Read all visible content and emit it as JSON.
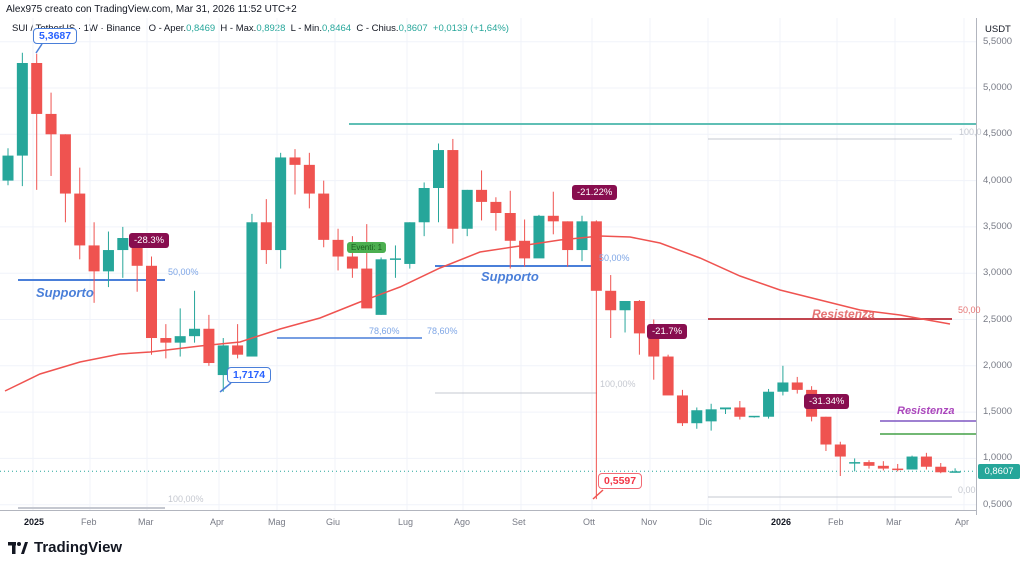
{
  "header": {
    "author_line": "Alex975 creato con TradingView.com, Mar 31, 2026 11:52 UTC+2"
  },
  "symbol_bar": {
    "symbol": "SUI / TetherUS · 1W · Binance",
    "open_label": "O - Aper.",
    "open": "0,8469",
    "high_label": "H - Max.",
    "high": "0,8928",
    "low_label": "L - Min.",
    "low": "0,8464",
    "close_label": "C - Chius.",
    "close": "0,8607",
    "change": "+0,0139 (+1,64%)"
  },
  "price_axis": {
    "unit": "USDT",
    "ticks": [
      "5,5000",
      "5,0000",
      "4,5000",
      "4,0000",
      "3,5000",
      "3,0000",
      "2,5000",
      "2,0000",
      "1,5000",
      "1,0000",
      "0,5000"
    ],
    "last_price": "0,8607",
    "last_price_color": "#26a69a"
  },
  "time_axis": {
    "labels": [
      {
        "text": "2025",
        "bold": true
      },
      {
        "text": "Feb"
      },
      {
        "text": "Mar"
      },
      {
        "text": "Apr"
      },
      {
        "text": "Mag"
      },
      {
        "text": "Giu"
      },
      {
        "text": "Lug"
      },
      {
        "text": "Ago"
      },
      {
        "text": "Set"
      },
      {
        "text": "Ott"
      },
      {
        "text": "Nov"
      },
      {
        "text": "Dic"
      },
      {
        "text": "2026",
        "bold": true
      },
      {
        "text": "Feb"
      },
      {
        "text": "Mar"
      },
      {
        "text": "Apr"
      }
    ]
  },
  "annotations": {
    "high_callout": "5,3687",
    "low_callout_1": "1,7174",
    "low_callout_2": "0,5597",
    "pct_1": "-28.3%",
    "pct_2": "-21.22%",
    "pct_3": "-21.7%",
    "pct_4": "-31.34%",
    "event_badge": "Eventi: 1",
    "support_1": "Supporto",
    "support_2": "Supporto",
    "resistance_1": "Resistenza",
    "resistance_2": "Resistenza",
    "fib_50_a": "50,00%",
    "fib_100_a": "100,00%",
    "fib_786_a": "78,60%",
    "fib_786_b": "78,60%",
    "fib_50_b": "50,00%",
    "fib_100_b": "100,00%",
    "fib_100_c": "100,0",
    "fib_50_c": "50,00",
    "fib_0_c": "0,00"
  },
  "colors": {
    "up": "#26a69a",
    "down": "#ef5350",
    "ma": "#ef5350",
    "support": "#4a7fd9",
    "resistance_red": "#c2454f",
    "resistance_purple": "#7e57c2",
    "teal_line": "#5fbfb5",
    "green_line": "#43a047",
    "badge": "#880e4f"
  },
  "logo": {
    "text": "TradingView"
  },
  "chart_data": {
    "type": "candlestick",
    "title": "SUI / TetherUS · 1W · Binance",
    "xlabel": "",
    "ylabel": "USDT",
    "ylim": [
      0.45,
      5.6
    ],
    "grid": true,
    "x_ticks": [
      "2025",
      "Feb",
      "Mar",
      "Apr",
      "Mag",
      "Giu",
      "Lug",
      "Ago",
      "Set",
      "Ott",
      "Nov",
      "Dic",
      "2026",
      "Feb",
      "Mar",
      "Apr"
    ],
    "candles_ohlc": [
      [
        4.0,
        4.35,
        3.95,
        4.27
      ],
      [
        4.27,
        5.38,
        3.94,
        5.27
      ],
      [
        5.27,
        5.37,
        3.9,
        4.72
      ],
      [
        4.72,
        4.95,
        4.05,
        4.5
      ],
      [
        4.5,
        4.5,
        3.55,
        3.86
      ],
      [
        3.86,
        4.14,
        3.15,
        3.3
      ],
      [
        3.3,
        3.55,
        2.68,
        3.02
      ],
      [
        3.02,
        3.45,
        2.85,
        3.25
      ],
      [
        3.25,
        3.5,
        2.95,
        3.38
      ],
      [
        3.38,
        3.4,
        2.8,
        3.08
      ],
      [
        3.08,
        3.18,
        2.12,
        2.3
      ],
      [
        2.3,
        2.45,
        2.08,
        2.25
      ],
      [
        2.25,
        2.62,
        2.1,
        2.32
      ],
      [
        2.32,
        2.81,
        2.25,
        2.4
      ],
      [
        2.4,
        2.55,
        2.0,
        2.03
      ],
      [
        1.9,
        2.3,
        1.72,
        2.22
      ],
      [
        2.22,
        2.45,
        2.08,
        2.12
      ],
      [
        2.1,
        3.64,
        2.1,
        3.55
      ],
      [
        3.55,
        3.8,
        3.1,
        3.25
      ],
      [
        3.25,
        4.3,
        3.05,
        4.25
      ],
      [
        4.25,
        4.34,
        3.85,
        4.17
      ],
      [
        4.17,
        4.3,
        3.7,
        3.86
      ],
      [
        3.86,
        4.0,
        3.28,
        3.36
      ],
      [
        3.36,
        3.48,
        3.03,
        3.18
      ],
      [
        3.18,
        3.4,
        2.95,
        3.05
      ],
      [
        3.05,
        3.53,
        2.66,
        2.62
      ],
      [
        2.55,
        3.17,
        2.55,
        3.15
      ],
      [
        3.15,
        3.3,
        2.95,
        3.16
      ],
      [
        3.1,
        3.55,
        3.05,
        3.55
      ],
      [
        3.55,
        3.98,
        3.4,
        3.92
      ],
      [
        3.92,
        4.4,
        3.55,
        4.33
      ],
      [
        4.33,
        4.45,
        3.32,
        3.48
      ],
      [
        3.48,
        3.9,
        3.4,
        3.9
      ],
      [
        3.9,
        4.11,
        3.57,
        3.77
      ],
      [
        3.77,
        3.82,
        3.46,
        3.65
      ],
      [
        3.65,
        3.89,
        3.05,
        3.35
      ],
      [
        3.35,
        3.58,
        3.07,
        3.16
      ],
      [
        3.16,
        3.63,
        3.2,
        3.62
      ],
      [
        3.62,
        3.88,
        3.42,
        3.56
      ],
      [
        3.56,
        3.56,
        3.07,
        3.25
      ],
      [
        3.25,
        3.62,
        3.13,
        3.56
      ],
      [
        3.56,
        3.57,
        0.56,
        2.81
      ],
      [
        2.81,
        2.98,
        2.3,
        2.6
      ],
      [
        2.6,
        2.68,
        2.36,
        2.7
      ],
      [
        2.7,
        2.71,
        2.12,
        2.35
      ],
      [
        2.35,
        2.5,
        1.85,
        2.1
      ],
      [
        2.1,
        2.12,
        1.7,
        1.68
      ],
      [
        1.68,
        1.74,
        1.35,
        1.38
      ],
      [
        1.38,
        1.55,
        1.32,
        1.52
      ],
      [
        1.4,
        1.59,
        1.3,
        1.53
      ],
      [
        1.53,
        1.55,
        1.48,
        1.55
      ],
      [
        1.55,
        1.62,
        1.42,
        1.45
      ],
      [
        1.45,
        1.45,
        1.44,
        1.46
      ],
      [
        1.45,
        1.75,
        1.43,
        1.72
      ],
      [
        1.72,
        2.0,
        1.68,
        1.82
      ],
      [
        1.82,
        1.88,
        1.7,
        1.74
      ],
      [
        1.74,
        1.78,
        1.4,
        1.45
      ],
      [
        1.45,
        1.45,
        1.08,
        1.15
      ],
      [
        1.15,
        1.18,
        0.81,
        1.02
      ],
      [
        0.95,
        1.0,
        0.86,
        0.96
      ],
      [
        0.96,
        0.98,
        0.89,
        0.92
      ],
      [
        0.92,
        0.97,
        0.87,
        0.89
      ],
      [
        0.89,
        0.94,
        0.86,
        0.88
      ],
      [
        0.88,
        1.03,
        0.88,
        1.02
      ],
      [
        1.02,
        1.06,
        0.88,
        0.91
      ],
      [
        0.91,
        0.95,
        0.84,
        0.85
      ],
      [
        0.8469,
        0.8928,
        0.8464,
        0.8607
      ]
    ],
    "moving_average": {
      "name": "MA",
      "color": "#ef5350"
    },
    "horizontal_levels": [
      {
        "name": "Supporto",
        "price": 2.93,
        "color": "#4a7fd9"
      },
      {
        "name": "Supporto",
        "price": 3.07,
        "color": "#4a7fd9"
      },
      {
        "name": "Resistenza",
        "price": 2.5,
        "color": "#c2454f"
      },
      {
        "name": "Resistenza",
        "price": 1.4,
        "color": "#7e57c2"
      },
      {
        "name": "level",
        "price": 1.26,
        "color": "#43a047"
      },
      {
        "name": "level",
        "price": 4.62,
        "color": "#5fbfb5"
      }
    ],
    "annotations": [
      "5,3687 high",
      "1,7174 low",
      "0,5597 low",
      "-28.3%",
      "-21.22%",
      "-21.7%",
      "-31.34%"
    ]
  }
}
